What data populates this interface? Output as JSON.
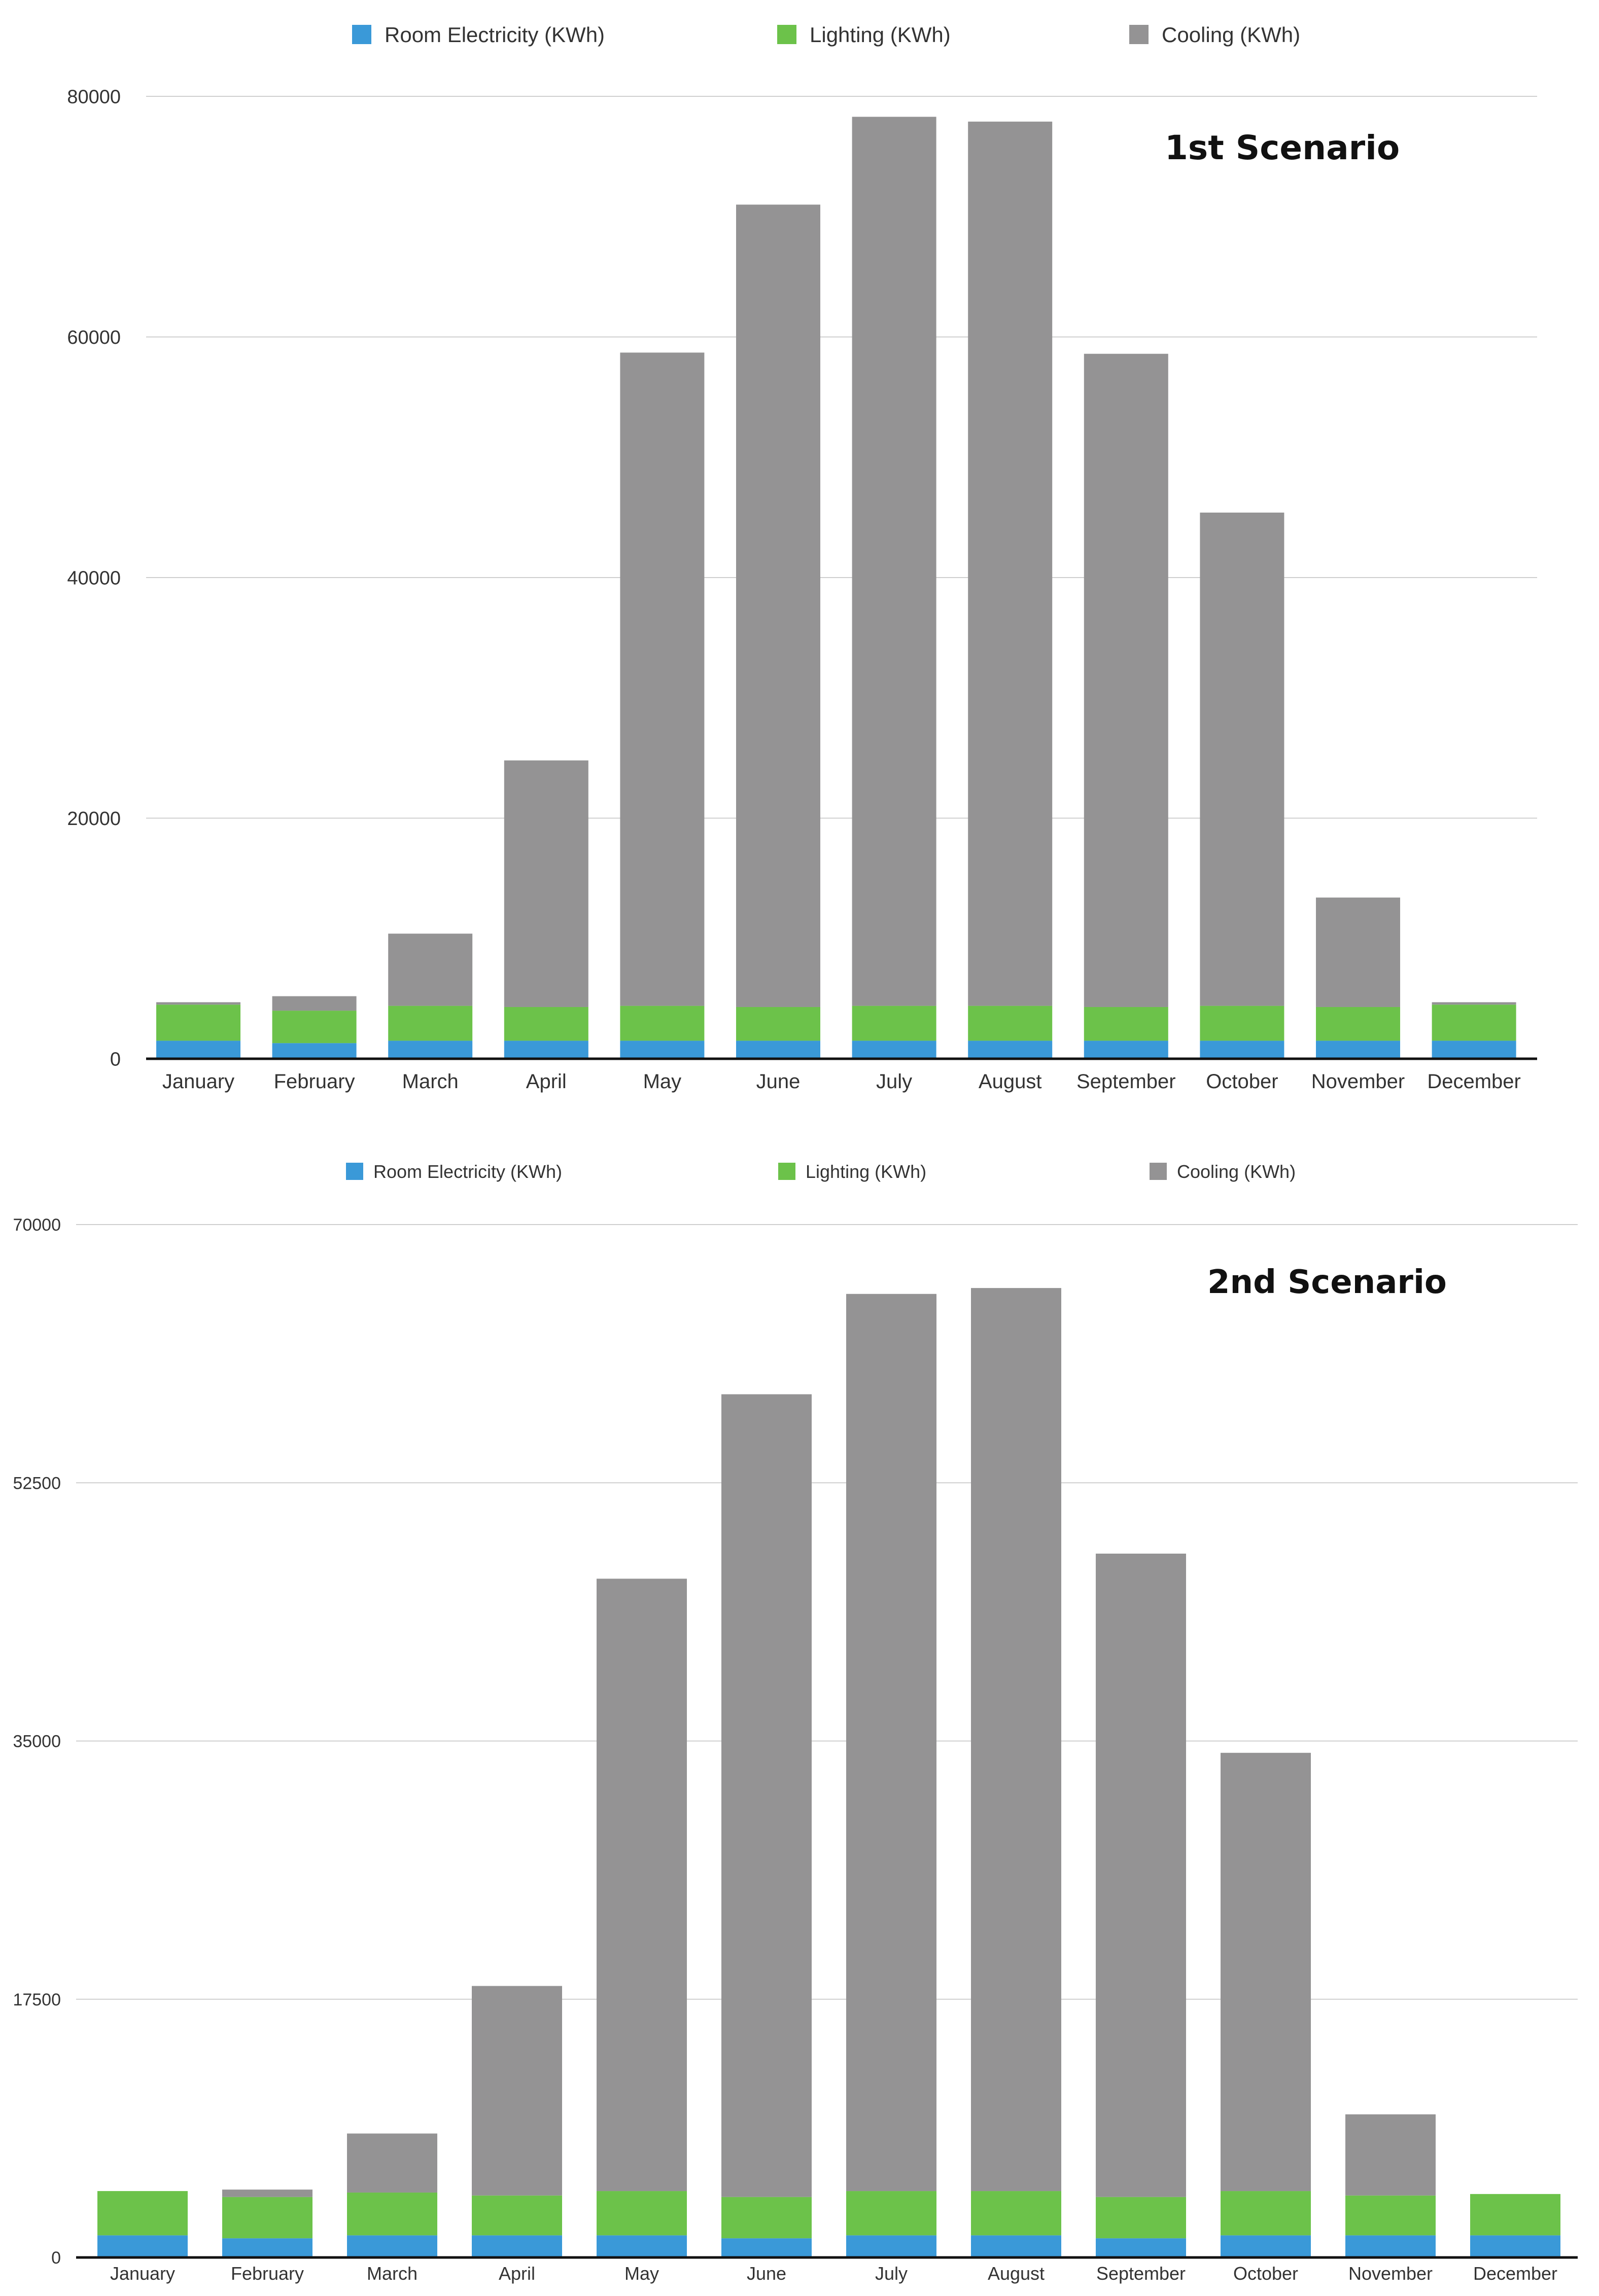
{
  "chart_data": [
    {
      "type": "bar",
      "stacked": true,
      "title": "1st Scenario",
      "xlabel": "",
      "ylabel": "",
      "ylim": [
        0,
        80000
      ],
      "yticks": [
        0,
        20000,
        40000,
        60000,
        80000
      ],
      "ytick_labels": [
        "0",
        "20000",
        "40000",
        "60000",
        "80000"
      ],
      "grid": true,
      "legend_position": "top",
      "categories": [
        "January",
        "February",
        "March",
        "April",
        "May",
        "June",
        "July",
        "August",
        "September",
        "October",
        "November",
        "December"
      ],
      "series": [
        {
          "name": "Room Electricity (KWh)",
          "color": "#3a99d8",
          "values": [
            1500,
            1300,
            1500,
            1500,
            1500,
            1500,
            1500,
            1500,
            1500,
            1500,
            1500,
            1500
          ]
        },
        {
          "name": "Lighting (KWh)",
          "color": "#6cc24a",
          "values": [
            3000,
            2700,
            2900,
            2800,
            2900,
            2800,
            2900,
            2900,
            2800,
            2900,
            2800,
            3000
          ]
        },
        {
          "name": "Cooling (KWh)",
          "color": "#949394",
          "values": [
            200,
            1200,
            6000,
            20500,
            54300,
            66700,
            73900,
            73500,
            54300,
            41000,
            9100,
            200
          ]
        }
      ]
    },
    {
      "type": "bar",
      "stacked": true,
      "title": "2nd Scenario",
      "xlabel": "",
      "ylabel": "",
      "ylim": [
        0,
        70000
      ],
      "yticks": [
        0,
        17500,
        35000,
        52500,
        70000
      ],
      "ytick_labels": [
        "0",
        "17500",
        "35000",
        "52500",
        "70000"
      ],
      "grid": true,
      "legend_position": "top",
      "categories": [
        "January",
        "February",
        "March",
        "April",
        "May",
        "June",
        "July",
        "August",
        "September",
        "October",
        "November",
        "December"
      ],
      "series": [
        {
          "name": "Room Electricity (KWh)",
          "color": "#3a99d8",
          "values": [
            1500,
            1300,
            1500,
            1500,
            1500,
            1300,
            1500,
            1500,
            1300,
            1500,
            1500,
            1500
          ]
        },
        {
          "name": "Lighting (KWh)",
          "color": "#6cc24a",
          "values": [
            3000,
            2800,
            2900,
            2700,
            3000,
            2800,
            3000,
            3000,
            2800,
            3000,
            2700,
            2800
          ]
        },
        {
          "name": "Cooling (KWh)",
          "color": "#949394",
          "values": [
            0,
            500,
            4000,
            14200,
            41500,
            54400,
            60800,
            61200,
            43600,
            29700,
            5500,
            0
          ]
        }
      ]
    }
  ]
}
